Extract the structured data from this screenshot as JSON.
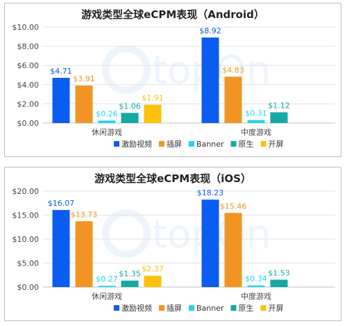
{
  "chart_data": [
    {
      "type": "bar",
      "title": "游戏类型全球eCPM表现（Android）",
      "categories": [
        "休闲游戏",
        "中度游戏"
      ],
      "series": [
        {
          "name": "激励视频",
          "values": [
            4.71,
            8.92
          ],
          "labels": [
            "$4.71",
            "$8.92"
          ],
          "color": "#0b5cf0"
        },
        {
          "name": "插屏",
          "values": [
            3.91,
            4.83
          ],
          "labels": [
            "$3.91",
            "$4.83"
          ],
          "color": "#f29423"
        },
        {
          "name": "Banner",
          "values": [
            0.26,
            0.31
          ],
          "labels": [
            "$0.26",
            "$0.31"
          ],
          "color": "#25d3ee"
        },
        {
          "name": "原生",
          "values": [
            1.06,
            1.12
          ],
          "labels": [
            "$1.06",
            "$1.12"
          ],
          "color": "#14a9a3"
        },
        {
          "name": "开屏",
          "values": [
            1.91,
            null
          ],
          "labels": [
            "$1.91",
            null
          ],
          "color": "#fcc10a"
        }
      ],
      "ylim": [
        0,
        10
      ],
      "yticks": [
        "$0.00",
        "$2.00",
        "$4.00",
        "$6.00",
        "$8.00",
        "$10.00"
      ],
      "grid": true,
      "legend": "bottom"
    },
    {
      "type": "bar",
      "title": "游戏类型全球eCPM表现（iOS）",
      "categories": [
        "休闲游戏",
        "中度游戏"
      ],
      "series": [
        {
          "name": "激励视频",
          "values": [
            16.07,
            18.23
          ],
          "labels": [
            "$16.07",
            "$18.23"
          ],
          "color": "#0b5cf0"
        },
        {
          "name": "插屏",
          "values": [
            13.73,
            15.46
          ],
          "labels": [
            "$13.73",
            "$15.46"
          ],
          "color": "#f29423"
        },
        {
          "name": "Banner",
          "values": [
            0.27,
            0.34
          ],
          "labels": [
            "$0.27",
            "$0.34"
          ],
          "color": "#25d3ee"
        },
        {
          "name": "原生",
          "values": [
            1.35,
            1.53
          ],
          "labels": [
            "$1.35",
            "$1.53"
          ],
          "color": "#14a9a3"
        },
        {
          "name": "开屏",
          "values": [
            2.37,
            null
          ],
          "labels": [
            "$2.37",
            null
          ],
          "color": "#fcc10a"
        }
      ],
      "ylim": [
        0,
        20
      ],
      "yticks": [
        "$0.00",
        "$5.00",
        "$10.00",
        "$15.00",
        "$20.00"
      ],
      "grid": true,
      "legend": "bottom"
    }
  ],
  "watermark": {
    "text": "topOn"
  }
}
